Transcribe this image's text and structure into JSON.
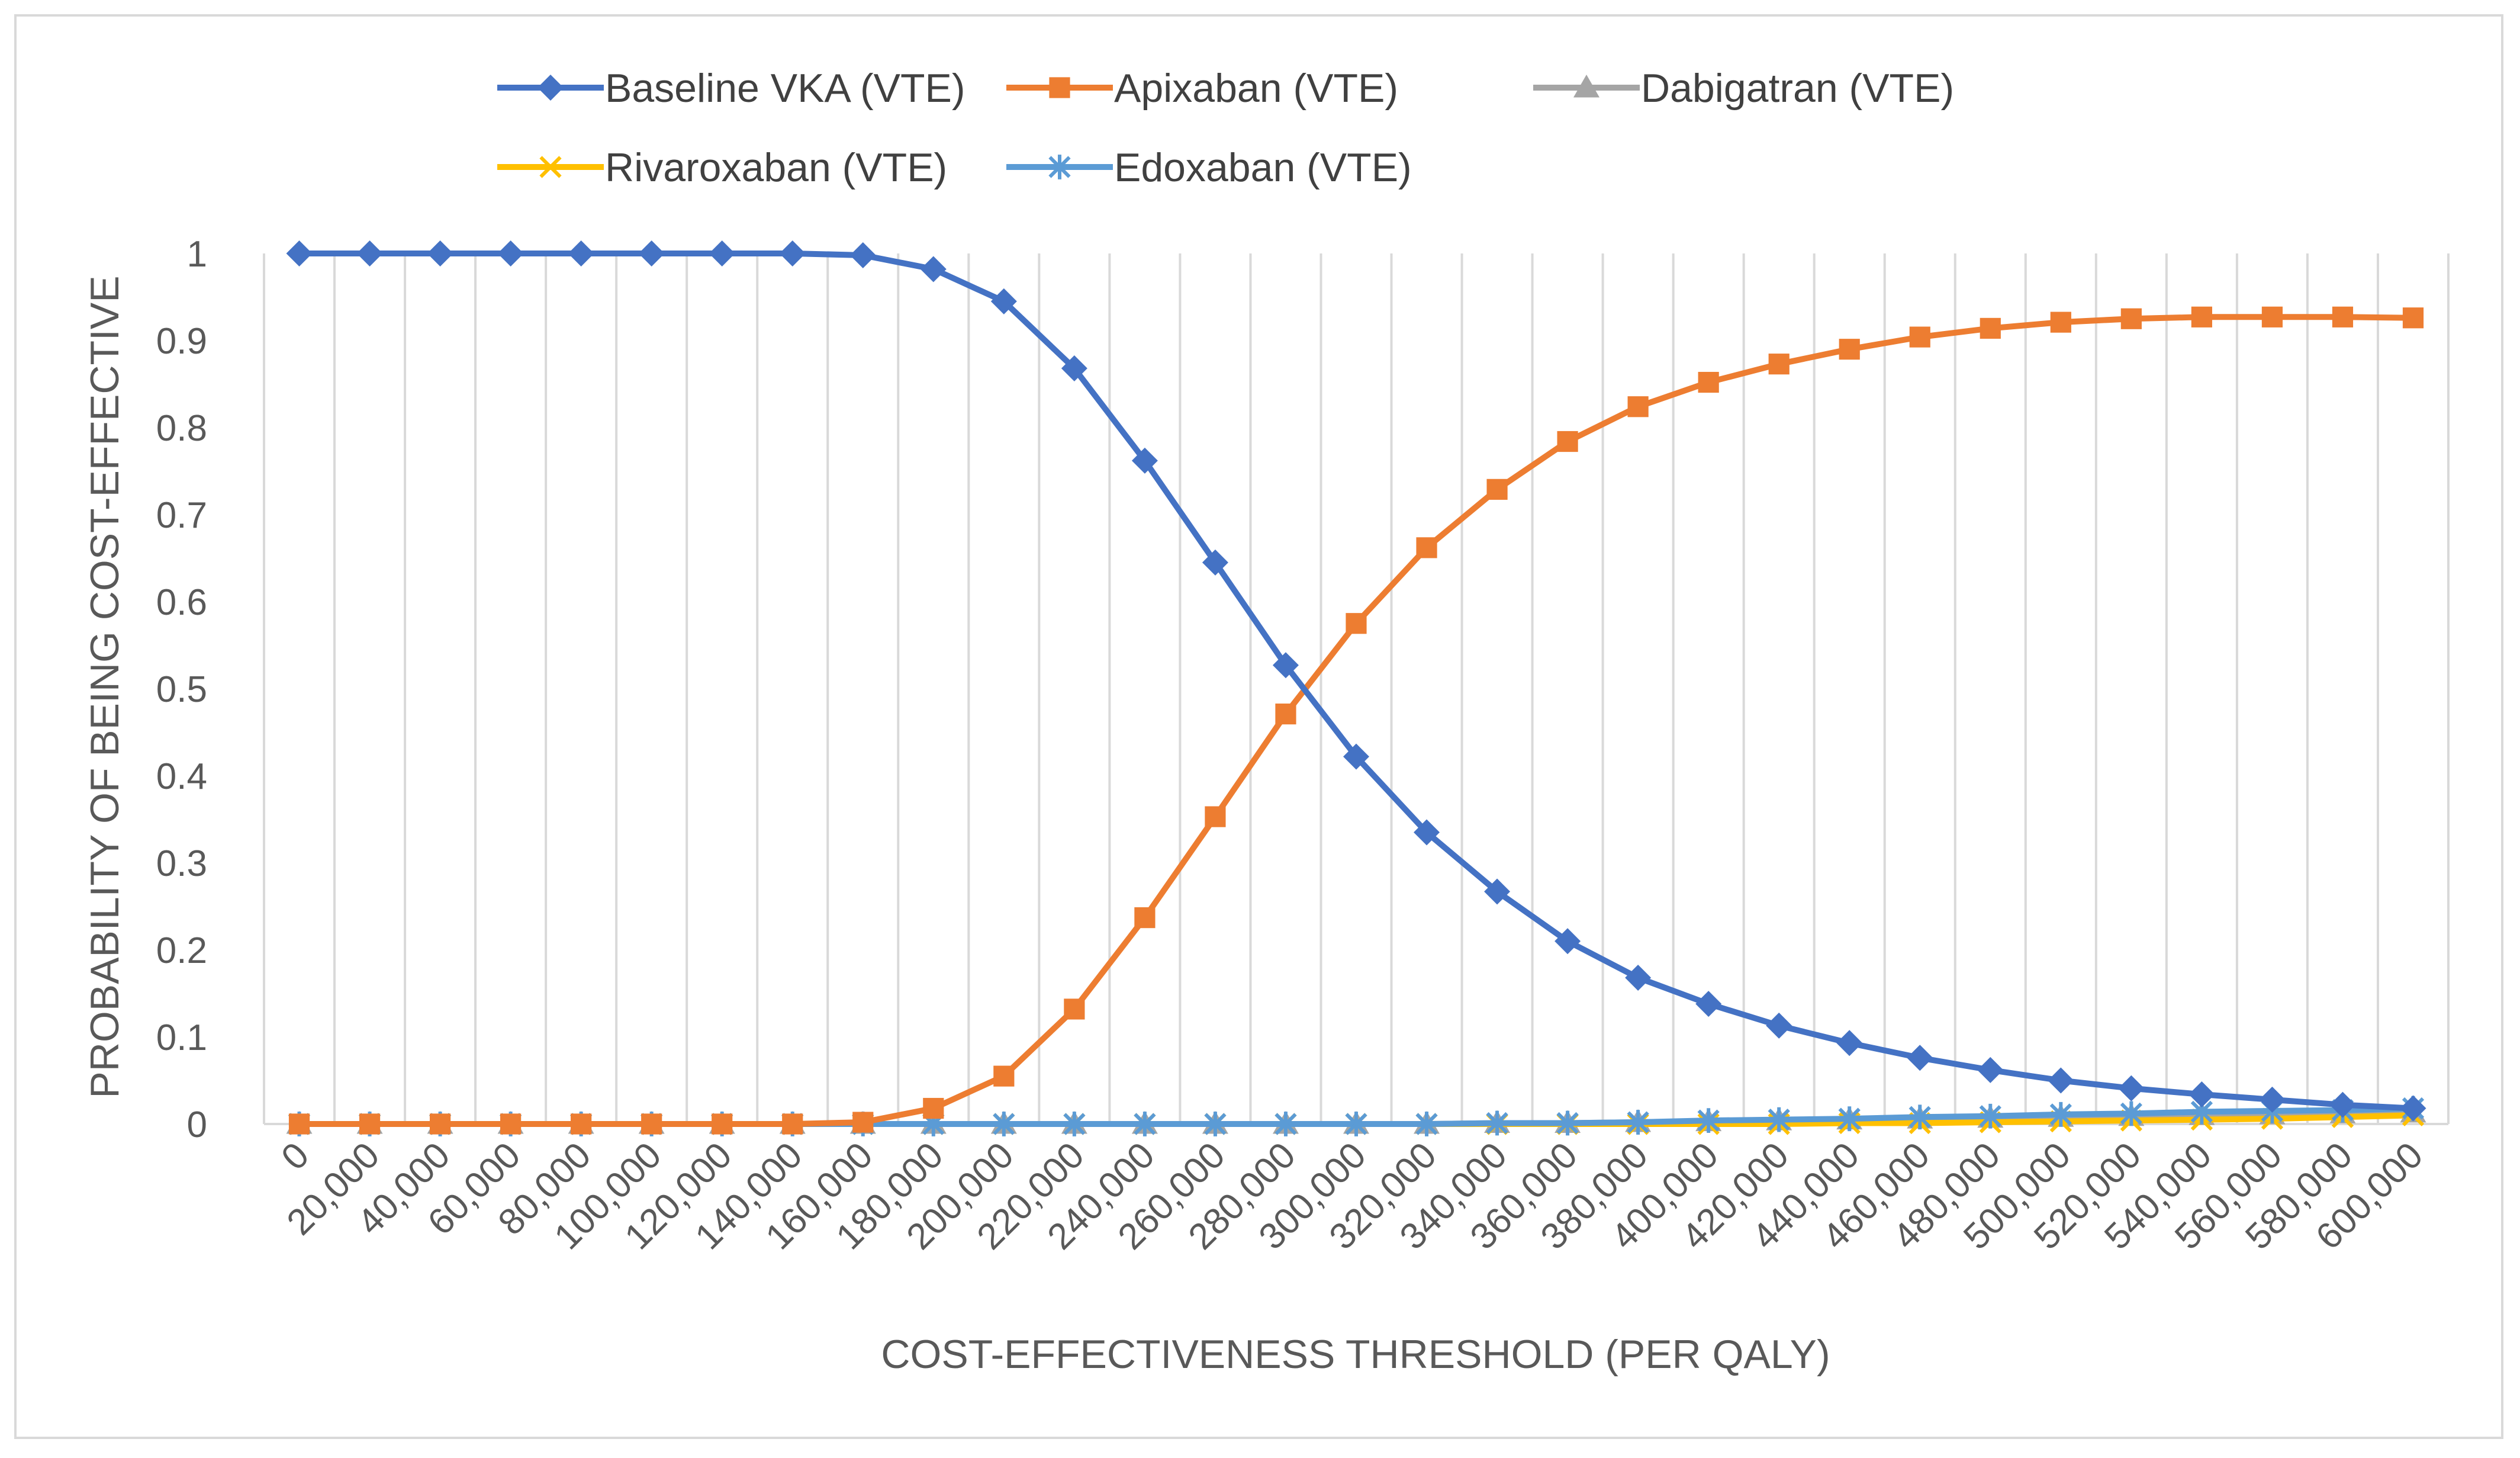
{
  "chart_data": {
    "type": "line",
    "title": "",
    "xlabel": "COST-EFFECTIVENESS THRESHOLD (PER QALY)",
    "ylabel": "PROBABILITY OF BEING COST-EFFECTIVE",
    "ylim": [
      0,
      1
    ],
    "yticks": [
      "0",
      "0.1",
      "0.2",
      "0.3",
      "0.4",
      "0.5",
      "0.6",
      "0.7",
      "0.8",
      "0.9",
      "1"
    ],
    "grid": "vertical",
    "legend_position": "top",
    "categories": [
      "0",
      "20,000",
      "40,000",
      "60,000",
      "80,000",
      "100,000",
      "120,000",
      "140,000",
      "160,000",
      "180,000",
      "200,000",
      "220,000",
      "240,000",
      "260,000",
      "280,000",
      "300,000",
      "320,000",
      "340,000",
      "360,000",
      "380,000",
      "400,000",
      "420,000",
      "440,000",
      "460,000",
      "480,000",
      "500,000",
      "520,000",
      "540,000",
      "560,000",
      "580,000",
      "600,000"
    ],
    "series": [
      {
        "name": "Baseline VKA (VTE)",
        "color": "#4472c4",
        "marker": "diamond",
        "values": [
          1,
          1,
          1,
          1,
          1,
          1,
          1,
          1,
          0.998,
          0.982,
          0.945,
          0.868,
          0.762,
          0.645,
          0.527,
          0.422,
          0.335,
          0.267,
          0.21,
          0.168,
          0.138,
          0.113,
          0.093,
          0.076,
          0.062,
          0.05,
          0.041,
          0.034,
          0.028,
          0.022,
          0.018
        ]
      },
      {
        "name": "Apixaban (VTE)",
        "color": "#ed7d31",
        "marker": "square",
        "values": [
          0,
          0,
          0,
          0,
          0,
          0,
          0,
          0,
          0.002,
          0.018,
          0.055,
          0.132,
          0.237,
          0.353,
          0.471,
          0.575,
          0.662,
          0.729,
          0.784,
          0.824,
          0.852,
          0.873,
          0.89,
          0.904,
          0.914,
          0.921,
          0.925,
          0.927,
          0.927,
          0.927,
          0.926
        ]
      },
      {
        "name": "Dabigatran (VTE)",
        "color": "#a5a5a5",
        "marker": "triangle",
        "values": [
          0,
          0,
          0,
          0,
          0,
          0,
          0,
          0,
          0,
          0,
          0,
          0,
          0,
          0,
          0,
          0,
          0,
          0.001,
          0.001,
          0.002,
          0.003,
          0.004,
          0.005,
          0.006,
          0.007,
          0.008,
          0.009,
          0.01,
          0.011,
          0.012,
          0.013
        ]
      },
      {
        "name": "Rivaroxaban (VTE)",
        "color": "#ffc000",
        "marker": "x",
        "values": [
          0,
          0,
          0,
          0,
          0,
          0,
          0,
          0,
          0,
          0,
          0,
          0,
          0,
          0,
          0,
          0,
          0,
          0,
          0,
          0,
          0,
          0,
          0.001,
          0.001,
          0.002,
          0.003,
          0.004,
          0.005,
          0.006,
          0.008,
          0.01
        ]
      },
      {
        "name": "Edoxaban (VTE)",
        "color": "#5b9bd5",
        "marker": "star",
        "values": [
          0,
          0,
          0,
          0,
          0,
          0,
          0,
          0,
          0,
          0,
          0,
          0,
          0,
          0,
          0,
          0,
          0,
          0.001,
          0.001,
          0.002,
          0.004,
          0.005,
          0.006,
          0.008,
          0.009,
          0.011,
          0.012,
          0.014,
          0.015,
          0.016,
          0.018
        ]
      }
    ]
  }
}
